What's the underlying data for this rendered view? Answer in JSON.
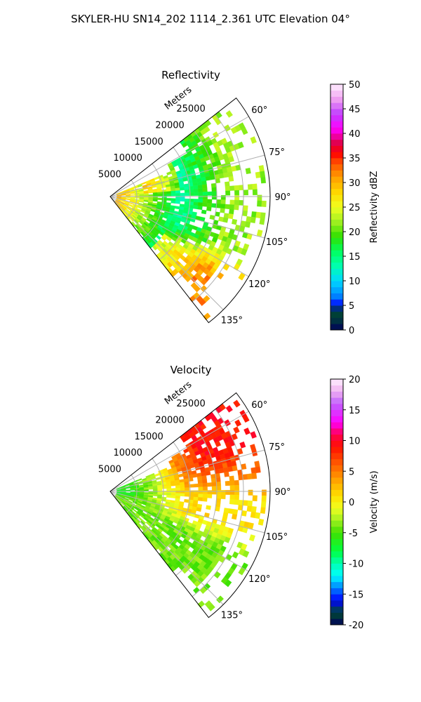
{
  "figure": {
    "title": "SKYLER-HU  SN14_202  1114_2.361 UTC Elevation 04°"
  },
  "chart_data": [
    {
      "type": "heatmap",
      "subtype": "polar-sector",
      "title": "Reflectivity",
      "radial_label": "Meters",
      "radial_ticks": [
        5000,
        10000,
        15000,
        20000,
        25000
      ],
      "radial_range": [
        0,
        30000
      ],
      "angle_ticks": [
        60,
        75,
        90,
        105,
        120,
        135
      ],
      "angle_range": [
        52,
        142
      ],
      "grid": true,
      "colorbar": {
        "label": "Reflectivity dBZ",
        "range": [
          0,
          50
        ],
        "ticks": [
          0,
          5,
          10,
          15,
          20,
          25,
          30,
          35,
          40,
          45,
          50
        ]
      },
      "field_description_values": {
        "near_range_dBZ": 27,
        "mid_range_dBZ": 14,
        "far_range_dBZ": 22,
        "southeast_maximum_dBZ": 32
      }
    },
    {
      "type": "heatmap",
      "subtype": "polar-sector",
      "title": "Velocity",
      "radial_label": "Meters",
      "radial_ticks": [
        5000,
        10000,
        15000,
        20000,
        25000
      ],
      "radial_range": [
        0,
        30000
      ],
      "angle_ticks": [
        60,
        75,
        90,
        105,
        120,
        135
      ],
      "angle_range": [
        52,
        142
      ],
      "grid": true,
      "colorbar": {
        "label": "Velocity (m/s)",
        "range": [
          -20,
          20
        ],
        "ticks": [
          -20,
          -15,
          -10,
          -5,
          0,
          5,
          10,
          15,
          20
        ]
      },
      "field_description_values": {
        "near_range_ms": -8,
        "northeast_far_ms": 9,
        "east_mid_ms": 1,
        "southeast_ms": -4
      }
    }
  ],
  "colors": {
    "background": "#ffffff",
    "grid": "#b0b0b0",
    "frame": "#000000"
  }
}
